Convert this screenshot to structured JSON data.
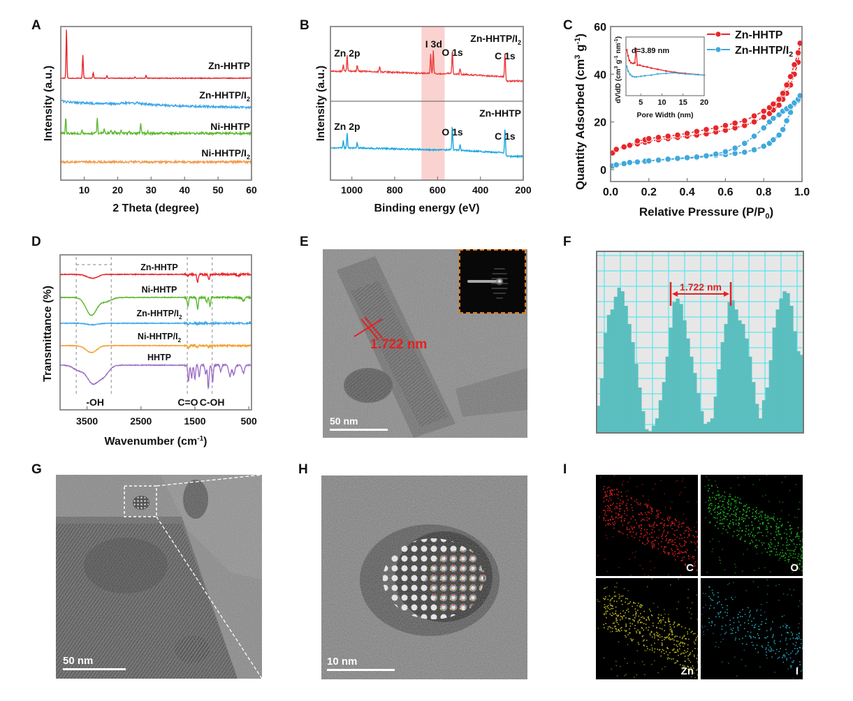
{
  "panels": {
    "A": {
      "label": "A"
    },
    "B": {
      "label": "B"
    },
    "C": {
      "label": "C"
    },
    "D": {
      "label": "D"
    },
    "E": {
      "label": "E",
      "measure": "1.722 nm",
      "scale_bar": "50 nm",
      "inset": "SAED pattern"
    },
    "F": {
      "label": "F",
      "measure": "1.722 nm"
    },
    "G": {
      "label": "G",
      "scale_bar": "50 nm"
    },
    "H": {
      "label": "H",
      "scale_bar": "10 nm"
    },
    "I": {
      "label": "I",
      "maps": [
        {
          "element": "C",
          "color": "#e02020"
        },
        {
          "element": "O",
          "color": "#20c020"
        },
        {
          "element": "Zn",
          "color": "#c8c020"
        },
        {
          "element": "I",
          "color": "#20b0c8"
        }
      ]
    }
  },
  "chart_data": [
    {
      "id": "A",
      "type": "line",
      "title": "",
      "xlabel": "2 Theta (degree)",
      "ylabel": "Intensity (a.u.)",
      "xlim": [
        3,
        60
      ],
      "xticks": [
        10,
        20,
        30,
        40,
        50,
        60
      ],
      "series": [
        {
          "name": "Zn-HHTP",
          "color": "#e8262a",
          "offset": 3,
          "peaks": [
            [
              4.7,
              1.0
            ],
            [
              9.6,
              0.48
            ],
            [
              12.7,
              0.12
            ],
            [
              16.8,
              0.05
            ],
            [
              25.2,
              0.03
            ],
            [
              28.5,
              0.06
            ]
          ]
        },
        {
          "name": "Zn-HHTP/I2",
          "color": "#3ea6e8",
          "offset": 2,
          "peaks": [
            [
              3.5,
              0.06
            ],
            [
              26,
              0.05
            ]
          ]
        },
        {
          "name": "Ni-HHTP",
          "color": "#5cb82e",
          "offset": 1,
          "peaks": [
            [
              4.5,
              0.55
            ],
            [
              9.3,
              0.12
            ],
            [
              13.9,
              0.55
            ],
            [
              16.0,
              0.18
            ],
            [
              18.0,
              0.1
            ],
            [
              19.1,
              0.12
            ],
            [
              21.0,
              0.1
            ],
            [
              23.5,
              0.08
            ],
            [
              26.9,
              0.35
            ],
            [
              29,
              0.06
            ],
            [
              33,
              0.05
            ]
          ]
        },
        {
          "name": "Ni-HHTP/I2",
          "color": "#f29a4a",
          "offset": 0,
          "peaks": [
            [
              25.4,
              0.07
            ]
          ]
        }
      ]
    },
    {
      "id": "B",
      "type": "line",
      "title": "",
      "xlabel": "Binding energy (eV)",
      "ylabel": "Intensity (a.u.)",
      "xlim": [
        1100,
        200
      ],
      "xticks": [
        1000,
        800,
        600,
        400,
        200
      ],
      "highlight_range": [
        675,
        567
      ],
      "series": [
        {
          "name": "Zn-HHTP/I2",
          "color": "#ec3c3c",
          "annotations": [
            {
              "text": "Zn 2p",
              "x": 1022
            },
            {
              "text": "I 3d",
              "x": 620
            },
            {
              "text": "O 1s",
              "x": 531
            },
            {
              "text": "C 1s",
              "x": 285
            }
          ]
        },
        {
          "name": "Zn-HHTP",
          "color": "#1aa7e0",
          "annotations": [
            {
              "text": "Zn 2p",
              "x": 1022
            },
            {
              "text": "O 1s",
              "x": 531
            },
            {
              "text": "C 1s",
              "x": 285
            }
          ]
        }
      ]
    },
    {
      "id": "C",
      "type": "line",
      "title": "",
      "xlabel": "Relative Pressure (P/P0)",
      "ylabel": "Quantity Adsorbed (cm3 g-1)",
      "xlim": [
        0,
        1.0
      ],
      "ylim": [
        -5,
        60
      ],
      "xticks": [
        0.0,
        0.2,
        0.4,
        0.6,
        0.8,
        1.0
      ],
      "yticks": [
        0,
        20,
        40,
        60
      ],
      "legend": "top-right",
      "series": [
        {
          "name": "Zn-HHTP",
          "color": "#e8262a",
          "x": [
            0.01,
            0.03,
            0.07,
            0.1,
            0.14,
            0.18,
            0.2,
            0.25,
            0.3,
            0.35,
            0.4,
            0.45,
            0.5,
            0.55,
            0.6,
            0.65,
            0.7,
            0.75,
            0.8,
            0.83,
            0.85,
            0.88,
            0.9,
            0.92,
            0.94,
            0.96,
            0.98,
            0.99
          ],
          "adsorption": [
            7,
            8.5,
            9.5,
            10,
            10.8,
            11.5,
            12,
            12.5,
            13,
            13.5,
            14,
            14.5,
            15,
            15.8,
            16.5,
            17.5,
            18.5,
            20,
            22,
            23.5,
            25,
            27,
            29.5,
            32,
            35.5,
            40,
            45,
            53
          ],
          "desorption": [
            7,
            8.5,
            9.5,
            10.2,
            12,
            12.5,
            13,
            13.5,
            14,
            14.5,
            15.2,
            16,
            16.8,
            17.5,
            18.5,
            19.5,
            20.5,
            22.5,
            24.5,
            26,
            27.5,
            29.5,
            32,
            35.5,
            39,
            44,
            49,
            53
          ]
        },
        {
          "name": "Zn-HHTP/I2",
          "color": "#41a8dc",
          "x": [
            0.01,
            0.03,
            0.07,
            0.1,
            0.14,
            0.18,
            0.2,
            0.25,
            0.3,
            0.35,
            0.4,
            0.45,
            0.5,
            0.55,
            0.6,
            0.65,
            0.7,
            0.75,
            0.8,
            0.83,
            0.85,
            0.88,
            0.9,
            0.92,
            0.94,
            0.96,
            0.98,
            0.99
          ],
          "adsorption": [
            1.5,
            2,
            2.5,
            3,
            3.2,
            3.5,
            3.7,
            4,
            4.3,
            4.5,
            4.8,
            5,
            5.5,
            6,
            6.3,
            6.8,
            7.3,
            8.3,
            9.8,
            11,
            12.5,
            14.5,
            16.8,
            20.5,
            24,
            27.5,
            29,
            31
          ]
        },
        {
          "name": "Zn-HHTP/I2 desorption",
          "color": "#41a8dc",
          "x": [
            0.01,
            0.03,
            0.07,
            0.1,
            0.14,
            0.18,
            0.2,
            0.25,
            0.3,
            0.35,
            0.4,
            0.45,
            0.5,
            0.55,
            0.6,
            0.65,
            0.7,
            0.75,
            0.8,
            0.83,
            0.85,
            0.88,
            0.9,
            0.92,
            0.94,
            0.96,
            0.98,
            0.99
          ],
          "desorption": [
            1.5,
            2,
            2.5,
            3,
            3.2,
            3.5,
            3.7,
            4,
            4.4,
            4.7,
            5,
            5.3,
            5.8,
            6.5,
            7.5,
            9,
            11,
            14,
            17.5,
            20,
            21.5,
            23,
            24.5,
            25.5,
            26.5,
            28,
            29.5,
            31
          ]
        }
      ],
      "inset": {
        "xlabel": "Pore Width (nm)",
        "ylabel": "dV\\dD (cm3 g-1 nm-1)",
        "xlim": [
          1.5,
          20
        ],
        "xticks": [
          5,
          10,
          15,
          20
        ],
        "annotation": "d=3.89 nm",
        "series": [
          {
            "name": "Zn-HHTP",
            "color": "#e8262a",
            "x": [
              1.7,
              2.0,
              2.3,
              2.7,
              3.2,
              3.6,
              3.89,
              4.2,
              4.8,
              5.6,
              6.5,
              7.5,
              9,
              11,
              13,
              15.5,
              18.5,
              20
            ],
            "y": [
              0.78,
              0.68,
              0.6,
              0.56,
              0.55,
              0.56,
              0.8,
              0.52,
              0.52,
              0.5,
              0.49,
              0.47,
              0.45,
              0.42,
              0.4,
              0.38,
              0.36,
              0.35
            ]
          },
          {
            "name": "Zn-HHTP/I2",
            "color": "#41a8dc",
            "x": [
              1.7,
              2.0,
              2.5,
              3.0,
              3.5,
              4.0,
              5,
              6,
              7.5,
              9,
              11,
              12.5,
              14,
              15.5,
              18,
              20
            ],
            "y": [
              0.5,
              0.42,
              0.36,
              0.33,
              0.32,
              0.32,
              0.33,
              0.34,
              0.35,
              0.37,
              0.38,
              0.39,
              0.38,
              0.37,
              0.36,
              0.35
            ]
          }
        ]
      }
    },
    {
      "id": "D",
      "type": "line",
      "title": "",
      "xlabel": "Wavenumber (cm-1)",
      "ylabel": "Transmittance (%)",
      "xlim": [
        4000,
        450
      ],
      "xticks": [
        3500,
        2500,
        1500,
        500
      ],
      "region_labels": [
        {
          "text": "-OH",
          "x": 3350
        },
        {
          "text": "C=O",
          "x": 1630
        },
        {
          "text": "C-OH",
          "x": 1180
        }
      ],
      "dashed_lines_x": [
        3700,
        3050,
        1640,
        1180
      ],
      "series": [
        {
          "name": "Zn-HHTP",
          "color": "#e8262a",
          "dips": [
            [
              3400,
              0.25
            ],
            [
              1630,
              0.1
            ],
            [
              1450,
              0.5
            ],
            [
              1240,
              0.3
            ],
            [
              700,
              0.1
            ]
          ]
        },
        {
          "name": "Ni-HHTP",
          "color": "#5cb82e",
          "dips": [
            [
              3420,
              0.85
            ],
            [
              3150,
              0.2
            ],
            [
              1630,
              0.4
            ],
            [
              1450,
              0.55
            ],
            [
              1280,
              0.25
            ],
            [
              1220,
              0.4
            ],
            [
              600,
              0.15
            ]
          ]
        },
        {
          "name": "Zn-HHTP/I2",
          "color": "#3ea6e8",
          "dips": [
            [
              3400,
              0.15
            ],
            [
              1620,
              0.08
            ],
            [
              1450,
              0.08
            ],
            [
              1250,
              0.05
            ]
          ]
        },
        {
          "name": "Ni-HHTP/I2",
          "color": "#f5a032",
          "dips": [
            [
              3420,
              0.45
            ],
            [
              1620,
              0.15
            ],
            [
              1460,
              0.15
            ],
            [
              1250,
              0.1
            ]
          ]
        },
        {
          "name": "HHTP",
          "color": "#9b6ec8",
          "dips": [
            [
              3650,
              0.2
            ],
            [
              3400,
              0.65
            ],
            [
              3200,
              0.4
            ],
            [
              1620,
              0.6
            ],
            [
              1560,
              0.5
            ],
            [
              1500,
              0.55
            ],
            [
              1420,
              0.45
            ],
            [
              1300,
              0.35
            ],
            [
              1250,
              0.9
            ],
            [
              1170,
              0.6
            ],
            [
              1020,
              0.25
            ],
            [
              850,
              0.4
            ],
            [
              780,
              0.35
            ],
            [
              600,
              0.3
            ]
          ]
        }
      ]
    },
    {
      "id": "F",
      "type": "bar",
      "title": "",
      "xlabel": "",
      "ylabel": "",
      "annotation": "1.722 nm",
      "values": [
        0.15,
        0.3,
        0.55,
        0.65,
        0.68,
        0.75,
        0.8,
        0.78,
        0.7,
        0.6,
        0.5,
        0.38,
        0.25,
        0.12,
        0.02,
        0.01,
        0.04,
        0.08,
        0.18,
        0.28,
        0.42,
        0.58,
        0.72,
        0.74,
        0.71,
        0.62,
        0.52,
        0.42,
        0.33,
        0.22,
        0.12,
        0.05,
        0.06,
        0.08,
        0.2,
        0.35,
        0.5,
        0.6,
        0.72,
        0.73,
        0.68,
        0.62,
        0.6,
        0.52,
        0.42,
        0.28,
        0.16,
        0.08,
        0.18,
        0.25,
        0.4,
        0.58,
        0.68,
        0.74,
        0.78,
        0.77,
        0.7,
        0.56,
        0.45,
        0.43
      ]
    }
  ]
}
